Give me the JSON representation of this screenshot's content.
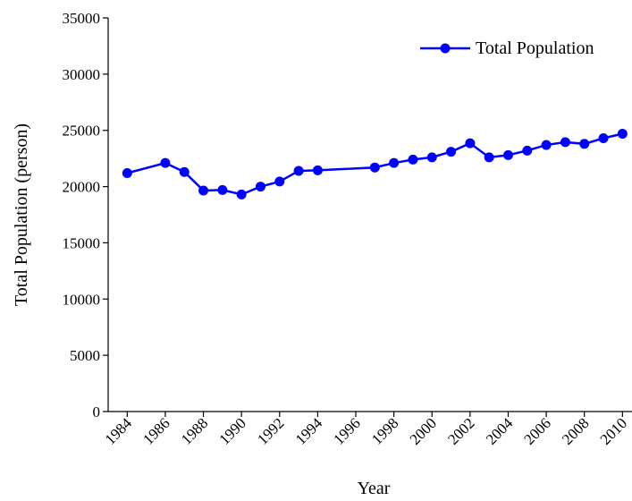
{
  "chart_data": {
    "type": "line",
    "x_label": "Year",
    "y_label": "Total Population (person)",
    "x": [
      1984,
      1986,
      1987,
      1988,
      1989,
      1990,
      1991,
      1992,
      1993,
      1994,
      1997,
      1998,
      1999,
      2000,
      2001,
      2002,
      2003,
      2004,
      2005,
      2006,
      2007,
      2008,
      2009,
      2010
    ],
    "series": [
      {
        "name": "Total Population",
        "color": "#0000ff",
        "values": [
          21200,
          22100,
          21300,
          19650,
          19700,
          19300,
          20000,
          20450,
          21400,
          21450,
          21700,
          22100,
          22400,
          22600,
          23100,
          23850,
          22600,
          22800,
          23200,
          23700,
          23950,
          23800,
          24300,
          24700
        ]
      }
    ],
    "xlim": [
      1983,
      2010.5
    ],
    "xticks": [
      1984,
      1986,
      1988,
      1990,
      1992,
      1994,
      1996,
      1998,
      2000,
      2002,
      2004,
      2006,
      2008,
      2010
    ],
    "ylim": [
      0,
      35000
    ],
    "yticks": [
      0,
      5000,
      10000,
      15000,
      20000,
      25000,
      30000,
      35000
    ],
    "grid": false,
    "legend": "top-right"
  }
}
